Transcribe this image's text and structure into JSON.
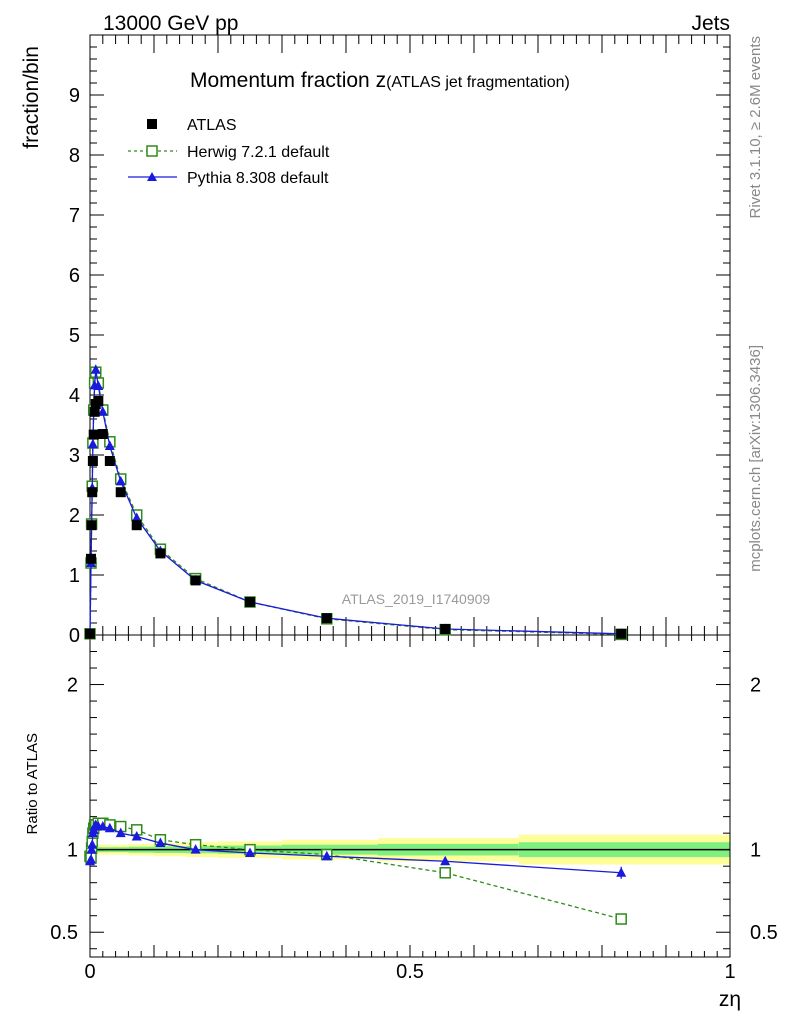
{
  "header": {
    "left": "13000 GeV pp",
    "right": "Jets"
  },
  "title": {
    "main": "Momentum fraction z",
    "sub": "(ATLAS jet fragmentation)"
  },
  "watermark": "ATLAS_2019_I1740909",
  "side_labels": {
    "rivet": "Rivet 3.1.10, ≥ 2.6M events",
    "mcplots": "mcplots.cern.ch [arXiv:1306.3436]"
  },
  "chart_data": [
    {
      "type": "scatter",
      "panel": "main",
      "ylabel": "fraction/bin",
      "xlabel": "",
      "xlim": [
        0,
        1
      ],
      "ylim": [
        0,
        10
      ],
      "yticks": [
        "1",
        "2",
        "3",
        "4",
        "5",
        "6",
        "7",
        "8",
        "9"
      ],
      "series": [
        {
          "name": "ATLAS",
          "color": "#000000",
          "marker": "filled-square",
          "x": [
            0.0,
            0.0016,
            0.0025,
            0.0035,
            0.0045,
            0.0058,
            0.0072,
            0.009,
            0.013,
            0.02,
            0.031,
            0.048,
            0.073,
            0.11,
            0.165,
            0.25,
            0.37,
            0.555,
            0.83
          ],
          "y": [
            0.02,
            1.27,
            1.83,
            2.38,
            2.9,
            3.34,
            3.72,
            3.85,
            3.9,
            3.35,
            2.9,
            2.38,
            1.83,
            1.36,
            0.91,
            0.55,
            0.28,
            0.1,
            0.02
          ]
        },
        {
          "name": "Herwig 7.2.1 default",
          "color": "#2e8b1a",
          "marker": "open-square",
          "line": "dashed",
          "x": [
            0.0,
            0.0016,
            0.0025,
            0.0035,
            0.0045,
            0.0058,
            0.0072,
            0.009,
            0.013,
            0.02,
            0.031,
            0.048,
            0.073,
            0.11,
            0.165,
            0.25,
            0.37,
            0.555,
            0.83
          ],
          "y": [
            0.02,
            1.2,
            1.85,
            2.48,
            3.2,
            3.75,
            4.2,
            4.38,
            4.2,
            3.75,
            3.22,
            2.6,
            2.0,
            1.43,
            0.94,
            0.55,
            0.27,
            0.09,
            0.01
          ]
        },
        {
          "name": "Pythia 8.308 default",
          "color": "#1a1adc",
          "marker": "filled-triangle",
          "line": "solid",
          "x": [
            0.0,
            0.0016,
            0.0025,
            0.0035,
            0.0045,
            0.0058,
            0.0072,
            0.009,
            0.013,
            0.02,
            0.031,
            0.048,
            0.073,
            0.11,
            0.165,
            0.25,
            0.37,
            0.555,
            0.83
          ],
          "y": [
            0.02,
            1.2,
            1.83,
            2.45,
            3.18,
            3.72,
            4.16,
            4.42,
            4.15,
            3.72,
            3.15,
            2.56,
            1.95,
            1.4,
            0.91,
            0.55,
            0.28,
            0.1,
            0.02
          ]
        }
      ]
    },
    {
      "type": "scatter",
      "panel": "ratio",
      "ylabel": "Ratio to ATLAS",
      "xlabel": "zη",
      "xlim": [
        0,
        1
      ],
      "ylim": [
        0.35,
        2.3
      ],
      "yticks": [
        "0.5",
        "1",
        "2"
      ],
      "xticks": [
        "0",
        "0.5",
        "1"
      ],
      "uncertainty_bands": {
        "x_edges": [
          0,
          0.0045,
          0.01,
          0.03,
          0.06,
          0.1,
          0.15,
          0.2,
          0.3,
          0.45,
          0.67,
          1.0
        ],
        "inner_half_width": [
          0.02,
          0.015,
          0.015,
          0.015,
          0.018,
          0.02,
          0.022,
          0.025,
          0.03,
          0.035,
          0.045
        ],
        "outer_half_width": [
          0.045,
          0.035,
          0.03,
          0.03,
          0.035,
          0.04,
          0.045,
          0.05,
          0.06,
          0.07,
          0.09
        ],
        "inner_color": "#7ff07f",
        "outer_color": "#fdfd9a"
      },
      "series": [
        {
          "name": "Herwig 7.2.1 default",
          "color": "#2e8b1a",
          "marker": "open-square",
          "line": "dashed",
          "x": [
            0.0,
            0.0016,
            0.0025,
            0.0035,
            0.0045,
            0.0058,
            0.0072,
            0.009,
            0.013,
            0.02,
            0.031,
            0.048,
            0.073,
            0.11,
            0.165,
            0.25,
            0.37,
            0.555,
            0.83
          ],
          "y": [
            0.96,
            0.95,
            1.01,
            1.05,
            1.1,
            1.13,
            1.15,
            1.15,
            1.16,
            1.16,
            1.15,
            1.14,
            1.12,
            1.06,
            1.03,
            1.0,
            0.97,
            0.86,
            0.58
          ]
        },
        {
          "name": "Pythia 8.308 default",
          "color": "#1a1adc",
          "marker": "filled-triangle",
          "line": "solid",
          "x": [
            0.0,
            0.0016,
            0.0025,
            0.0035,
            0.0045,
            0.0058,
            0.0072,
            0.009,
            0.013,
            0.02,
            0.031,
            0.048,
            0.073,
            0.11,
            0.165,
            0.25,
            0.37,
            0.555,
            0.83
          ],
          "y": [
            0.93,
            0.94,
            1.0,
            1.03,
            1.1,
            1.12,
            1.14,
            1.15,
            1.14,
            1.14,
            1.13,
            1.1,
            1.08,
            1.04,
            1.0,
            0.98,
            0.96,
            0.93,
            0.86
          ]
        }
      ]
    }
  ]
}
